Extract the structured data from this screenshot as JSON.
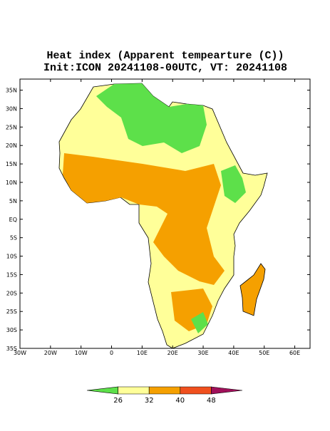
{
  "map": {
    "title": "Heat index (Apparent tempearture (C))",
    "subtitle": "Init:ICON 20241108-00UTC, VT: 20241108",
    "lonlim": [
      -30,
      65
    ],
    "latlim": [
      -35,
      38
    ],
    "lonticks": [
      {
        "value": -30,
        "label": "30W"
      },
      {
        "value": -20,
        "label": "20W"
      },
      {
        "value": -10,
        "label": "10W"
      },
      0,
      {
        "value": 10,
        "label": "10E"
      },
      {
        "value": 20,
        "label": "20E"
      },
      {
        "value": 30,
        "label": "30E"
      },
      {
        "value": 40,
        "label": "40E"
      },
      {
        "value": 50,
        "label": "50E"
      },
      {
        "value": 60,
        "label": "60E"
      }
    ],
    "latticks": [
      {
        "value": 35,
        "label": "35N"
      },
      {
        "value": 30,
        "label": "30N"
      },
      {
        "value": 25,
        "label": "25N"
      },
      {
        "value": 20,
        "label": "20N"
      },
      {
        "value": 15,
        "label": "15N"
      },
      {
        "value": 10,
        "label": "10N"
      },
      {
        "value": 5,
        "label": "5N"
      },
      {
        "value": 0,
        "label": "EQ"
      },
      {
        "value": -5,
        "label": "5S"
      },
      {
        "value": -10,
        "label": "10S"
      },
      {
        "value": -15,
        "label": "15S"
      },
      {
        "value": -20,
        "label": "20S"
      },
      {
        "value": -25,
        "label": "25S"
      },
      {
        "value": -30,
        "label": "30S"
      },
      {
        "value": -35,
        "label": "35S"
      }
    ],
    "colorbar": {
      "ticks": [
        26,
        32,
        40,
        48
      ],
      "colors": [
        "#5de04a",
        "#ffff99",
        "#f5a000",
        "#f0501e",
        "#a0105a"
      ]
    }
  }
}
